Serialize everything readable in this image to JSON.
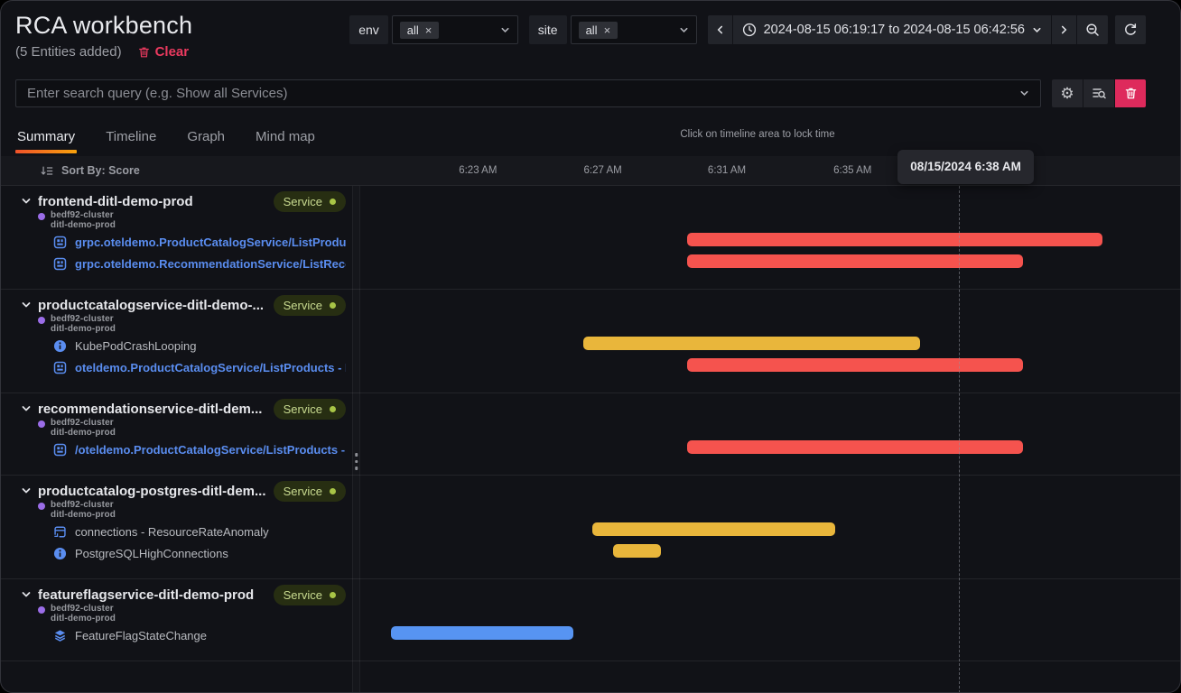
{
  "app": {
    "title": "RCA workbench",
    "entities_count": "(5 Entities added)",
    "clear_label": "Clear"
  },
  "filters": {
    "env": {
      "label": "env",
      "selected_chip": "all"
    },
    "site": {
      "label": "site",
      "selected_chip": "all"
    }
  },
  "time_picker": {
    "range_text": "2024-08-15 06:19:17 to 2024-08-15 06:42:56"
  },
  "search": {
    "placeholder": "Enter search query (e.g. Show all Services)"
  },
  "tabs": [
    {
      "label": "Summary",
      "active": true
    },
    {
      "label": "Timeline",
      "active": false
    },
    {
      "label": "Graph",
      "active": false
    },
    {
      "label": "Mind map",
      "active": false
    }
  ],
  "timeline": {
    "lock_hint": "Click on timeline area to lock time",
    "sort_by": "Sort By: Score",
    "ticks": [
      {
        "label": "6:23 AM",
        "left_pct": 15.1
      },
      {
        "label": "6:27 AM",
        "left_pct": 30.2
      },
      {
        "label": "6:31 AM",
        "left_pct": 45.2
      },
      {
        "label": "6:35 AM",
        "left_pct": 60.4
      }
    ],
    "tooltip": {
      "text": "08/15/2024 6:38 AM",
      "left_pct": 65.6
    },
    "cursor_left_pct": 73.0
  },
  "groups": [
    {
      "name": "frontend-ditl-demo-prod",
      "badge": "Service",
      "cluster": "bedf92-cluster",
      "namespace": "ditl-demo-prod",
      "rows": [
        {
          "icon": "trace",
          "style": "link",
          "label": "grpc.oteldemo.ProductCatalogService/ListProducts ...",
          "bar": {
            "color": "red",
            "start_pct": 40.4,
            "end_pct": 90.6,
            "approx_start": "6:30 AM",
            "approx_end": "6:43 AM"
          }
        },
        {
          "icon": "trace",
          "style": "link",
          "label": "grpc.oteldemo.RecommendationService/ListRecom...",
          "bar": {
            "color": "red",
            "start_pct": 40.4,
            "end_pct": 81.0,
            "approx_start": "6:30 AM",
            "approx_end": "6:40 AM"
          }
        }
      ]
    },
    {
      "name": "productcatalogservice-ditl-demo-...",
      "badge": "Service",
      "cluster": "bedf92-cluster",
      "namespace": "ditl-demo-prod",
      "rows": [
        {
          "icon": "info",
          "style": "plain",
          "label": "KubePodCrashLooping",
          "bar": {
            "color": "yellow",
            "start_pct": 27.8,
            "end_pct": 68.6,
            "approx_start": "6:26 AM",
            "approx_end": "6:37 AM"
          }
        },
        {
          "icon": "trace",
          "style": "link",
          "label": "oteldemo.ProductCatalogService/ListProducts - Erro...",
          "bar": {
            "color": "red",
            "start_pct": 40.4,
            "end_pct": 81.0,
            "approx_start": "6:30 AM",
            "approx_end": "6:40 AM"
          }
        }
      ]
    },
    {
      "name": "recommendationservice-ditl-dem...",
      "badge": "Service",
      "cluster": "bedf92-cluster",
      "namespace": "ditl-demo-prod",
      "rows": [
        {
          "icon": "trace",
          "style": "link",
          "label": "/oteldemo.ProductCatalogService/ListProducts - Err...",
          "bar": {
            "color": "red",
            "start_pct": 40.4,
            "end_pct": 81.0,
            "approx_start": "6:30 AM",
            "approx_end": "6:40 AM"
          }
        }
      ]
    },
    {
      "name": "productcatalog-postgres-ditl-dem...",
      "badge": "Service",
      "cluster": "bedf92-cluster",
      "namespace": "ditl-demo-prod",
      "rows": [
        {
          "icon": "panel",
          "style": "plain",
          "label": "connections - ResourceRateAnomaly",
          "bar": {
            "color": "yellow",
            "start_pct": 28.9,
            "end_pct": 58.3,
            "approx_start": "6:27 AM",
            "approx_end": "6:34 AM"
          }
        },
        {
          "icon": "info",
          "style": "plain",
          "label": "PostgreSQLHighConnections",
          "bar": {
            "color": "yellow",
            "start_pct": 31.4,
            "end_pct": 37.2,
            "approx_start": "6:27 AM",
            "approx_end": "6:29 AM"
          }
        }
      ]
    },
    {
      "name": "featureflagservice-ditl-demo-prod",
      "badge": "Service",
      "cluster": "bedf92-cluster",
      "namespace": "ditl-demo-prod",
      "rows": [
        {
          "icon": "layers",
          "style": "plain",
          "label": "FeatureFlagStateChange",
          "bar": {
            "color": "blue",
            "start_pct": 4.6,
            "end_pct": 26.6,
            "approx_start": "6:20 AM",
            "approx_end": "6:26 AM"
          }
        }
      ]
    }
  ],
  "colors": {
    "bar_red": "#F5534E",
    "bar_yellow": "#E9B63B",
    "bar_blue": "#5794F2",
    "accent_orange": "#F2562B",
    "link_blue": "#5A8DF0",
    "badge_bg": "#272E12",
    "badge_text": "#C9DB90",
    "badge_dot": "#A8C546",
    "cluster_dot_purple": "#9B6DE8",
    "danger_red": "#DE2A5C",
    "clear_red": "#EB3A5F"
  }
}
